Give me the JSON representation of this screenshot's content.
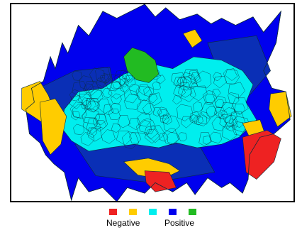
{
  "legend": {
    "low_label": "Negative",
    "high_label": "Positive",
    "colors": [
      "#ee2222",
      "#ffcc00",
      "#00eeee",
      "#0000ee",
      "#22bb22"
    ]
  },
  "map": {
    "edge_color": "#0b2a3a",
    "background": "#ffffff",
    "palette": {
      "red": "#ee2222",
      "yellow": "#ffcc00",
      "cyan": "#00eeee",
      "blue": "#0000ee",
      "darkblue": "#0a2fb6",
      "green": "#22bb22"
    }
  }
}
